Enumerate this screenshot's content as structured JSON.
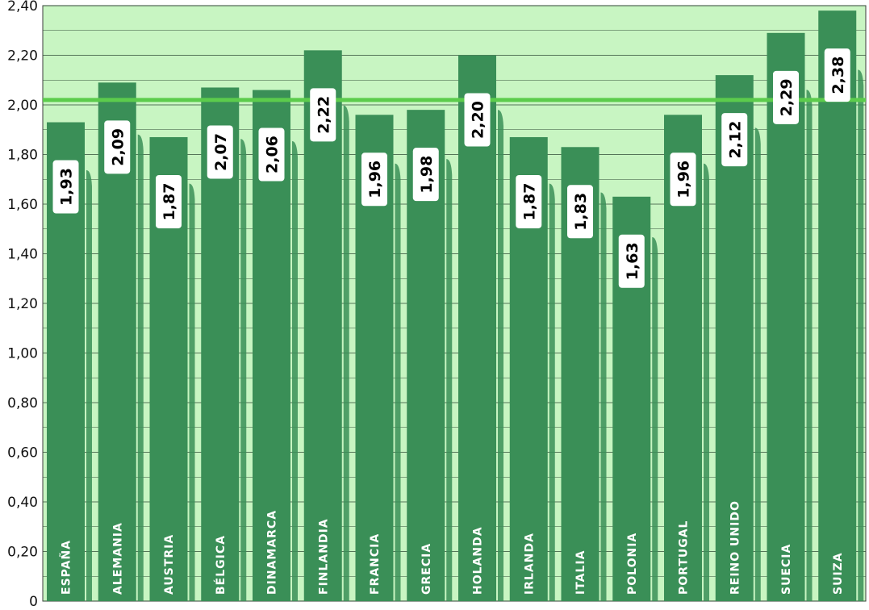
{
  "chart_data": {
    "type": "bar",
    "categories": [
      "ESPAÑA",
      "ALEMANIA",
      "AUSTRIA",
      "BÉLGICA",
      "DINAMARCA",
      "FINLANDIA",
      "FRANCIA",
      "GRECIA",
      "HOLANDA",
      "IRLANDA",
      "ITALIA",
      "POLONIA",
      "PORTUGAL",
      "REINO UNIDO",
      "SUECIA",
      "SUIZA"
    ],
    "values": [
      1.93,
      2.09,
      1.87,
      2.07,
      2.06,
      2.22,
      1.96,
      1.98,
      2.2,
      1.87,
      1.83,
      1.63,
      1.96,
      2.12,
      2.29,
      2.38
    ],
    "value_labels": [
      "1,93",
      "2,09",
      "1,87",
      "2,07",
      "2,06",
      "2,22",
      "1,96",
      "1,98",
      "2,20",
      "1,87",
      "1,83",
      "1,63",
      "1,96",
      "2,12",
      "2,29",
      "2,38"
    ],
    "y_ticks": [
      0,
      0.2,
      0.4,
      0.6,
      0.8,
      1.0,
      1.2,
      1.4,
      1.6,
      1.8,
      2.0,
      2.2,
      2.4
    ],
    "y_tick_labels": [
      "0",
      "0,20",
      "0,40",
      "0,60",
      "0,80",
      "1,00",
      "1,20",
      "1,40",
      "1,60",
      "1,80",
      "2,00",
      "2,20",
      "2,40"
    ],
    "ylim": [
      0,
      2.4
    ],
    "reference_line": 2.02,
    "grid": true,
    "title": "",
    "xlabel": "",
    "ylabel": "",
    "colors": {
      "plot_background": "#c8f5c2",
      "bar": "#3a8f57",
      "reference_line": "#5ccc4c",
      "label_box": "#ffffff",
      "category_text": "#ffffff"
    }
  }
}
